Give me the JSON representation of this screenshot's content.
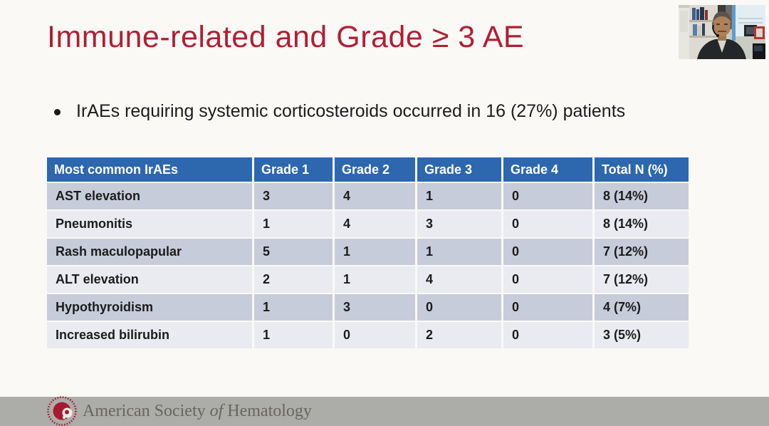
{
  "colors": {
    "slide_background": "#FAF9F6",
    "title_red": "#B01F33",
    "body_text": "#1C1C1C",
    "table_header_blue": "#2D67AE",
    "table_row_dark": "#C6CCD9",
    "table_row_light": "#E9EBF1",
    "footer_bar_gray": "#ACACA8",
    "footer_text_gray": "#67665F",
    "ash_logo_red": "#A6192E"
  },
  "slide": {
    "title": "Immune-related and Grade ≥ 3 AE",
    "bullet": "IrAEs requiring systemic corticosteroids occurred in 16 (27%) patients"
  },
  "table": {
    "columns": [
      "Most common IrAEs",
      "Grade 1",
      "Grade 2",
      "Grade 3",
      "Grade 4",
      "Total N (%)"
    ],
    "rows": [
      {
        "label": "AST elevation",
        "values": [
          "3",
          "4",
          "1",
          "0",
          "8 (14%)"
        ]
      },
      {
        "label": "Pneumonitis",
        "values": [
          "1",
          "4",
          "3",
          "0",
          "8 (14%)"
        ]
      },
      {
        "label": "Rash maculopapular",
        "values": [
          "5",
          "1",
          "1",
          "0",
          "7 (12%)"
        ]
      },
      {
        "label": "ALT elevation",
        "values": [
          "2",
          "1",
          "4",
          "0",
          "7 (12%)"
        ]
      },
      {
        "label": "Hypothyroidism",
        "values": [
          "1",
          "3",
          "0",
          "0",
          "4 (7%)"
        ]
      },
      {
        "label": "Increased bilirubin",
        "values": [
          "1",
          "0",
          "2",
          "0",
          "3 (5%)"
        ]
      }
    ]
  },
  "footer": {
    "org_part1": "American Society ",
    "org_of": "of",
    "org_part2": " Hematology",
    "logo_icon": "ash-logo"
  },
  "webcam": {
    "icon": "speaker-video-thumbnail"
  }
}
